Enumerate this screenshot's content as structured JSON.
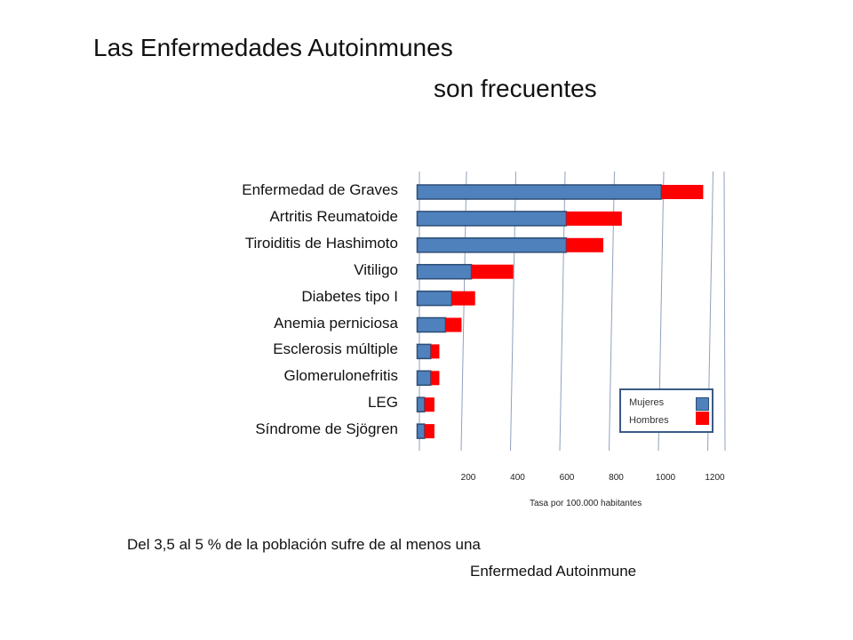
{
  "slide": {
    "title_line1": "Las Enfermedades  Autoinmunes",
    "title_line2": "son frecuentes",
    "footer_line1": "Del 3,5 al 5 % de la población sufre de al menos una",
    "footer_line2": "Enfermedad Autoinmune"
  },
  "chart_data": {
    "type": "bar",
    "orientation": "horizontal",
    "stacked": true,
    "categories": [
      "Enfermedad de Graves",
      "Artritis Reumatoide",
      "Tiroiditis de Hashimoto",
      "Vitiligo",
      "Diabetes  tipo I",
      "Anemia perniciosa",
      "Esclerosis múltiple",
      "Glomerulonefritis",
      "LEG",
      "Síndrome de Sjögren"
    ],
    "series": [
      {
        "name": "Mujeres",
        "color": "#4f81bd",
        "values": [
          990,
          605,
          605,
          220,
          140,
          115,
          55,
          55,
          30,
          30
        ]
      },
      {
        "name": "Hombres",
        "color": "#ff0000",
        "values": [
          170,
          225,
          150,
          170,
          95,
          65,
          35,
          35,
          40,
          40
        ]
      }
    ],
    "xticks": [
      "200",
      "400",
      "600",
      "800",
      "1000",
      "1200"
    ],
    "xlim": [
      0,
      1250
    ],
    "xlabel": "Tasa por 100.000 habitantes",
    "grid": "vertical",
    "legend": {
      "position": "bottom-right",
      "entries": [
        "Mujeres",
        "Hombres"
      ]
    }
  }
}
